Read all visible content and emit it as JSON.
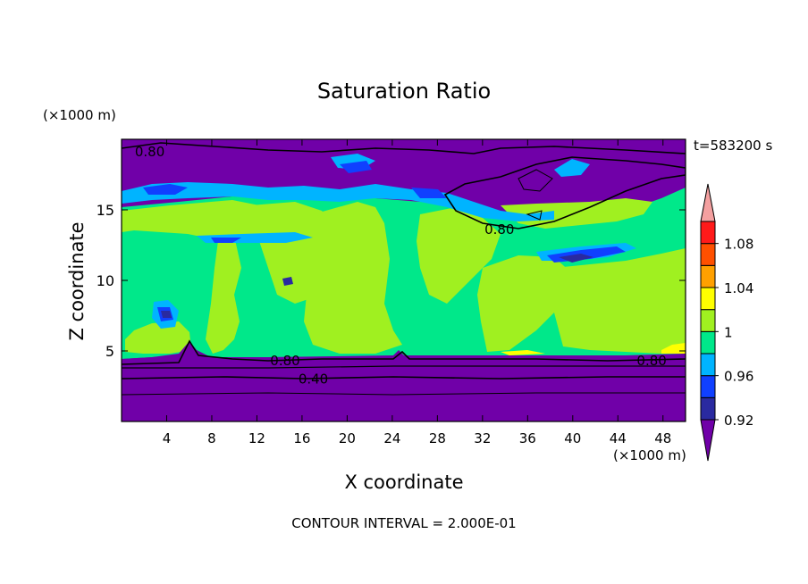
{
  "chart_data": {
    "type": "contour",
    "title": "Saturation Ratio",
    "xlabel": "X coordinate",
    "ylabel": "Z coordinate",
    "x_unit": "(×1000 m)",
    "y_unit": "(×1000 m)",
    "time_label": "t=583200 s",
    "footnote": "CONTOUR INTERVAL = 2.000E-01",
    "xlim": [
      0,
      50
    ],
    "ylim": [
      0,
      20
    ],
    "x_ticks": [
      4,
      8,
      12,
      16,
      20,
      24,
      28,
      32,
      36,
      40,
      44,
      48
    ],
    "x_tick_labels": [
      "4",
      "8",
      "12",
      "16",
      "20",
      "24",
      "28",
      "32",
      "36",
      "40",
      "44",
      "48"
    ],
    "y_ticks": [
      5,
      10,
      15
    ],
    "y_tick_labels": [
      "5",
      "10",
      "15"
    ],
    "contour_labels": [
      {
        "text": "0.80",
        "x": 2.5,
        "z": 19.1
      },
      {
        "text": "0.80",
        "x": 33.5,
        "z": 13.6
      },
      {
        "text": "0.80",
        "x": 14.5,
        "z": 4.3
      },
      {
        "text": "0.80",
        "x": 47.0,
        "z": 4.3
      },
      {
        "text": "0.40",
        "x": 17.0,
        "z": 3.0
      }
    ],
    "colorbar": {
      "levels": [
        0.92,
        0.94,
        0.96,
        0.98,
        1.0,
        1.02,
        1.04,
        1.06,
        1.08,
        1.1
      ],
      "colors": [
        "#7000a8",
        "#2a2aa0",
        "#1040ff",
        "#00b4ff",
        "#00e88a",
        "#a0f020",
        "#ffff00",
        "#ffa000",
        "#ff5000",
        "#ff1a1a",
        "#f4a0a0"
      ],
      "tick_labels": [
        "0.92",
        "0.96",
        "1",
        "1.04",
        "1.08"
      ],
      "tick_values": [
        0.92,
        0.96,
        1.0,
        1.04,
        1.08
      ]
    }
  }
}
